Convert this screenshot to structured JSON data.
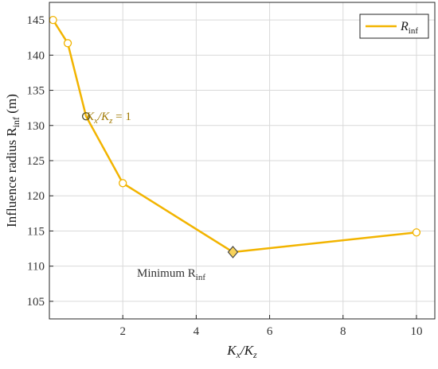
{
  "chart_data": {
    "type": "line",
    "title": "",
    "xlabel": {
      "main": "K",
      "sub1": "x",
      "sep": "/K",
      "sub2": "z"
    },
    "ylabel": {
      "main": "Influence radius R",
      "sub": "inf",
      "unit": " (m)"
    },
    "xlim": [
      0,
      10.5
    ],
    "ylim": [
      102.5,
      147.5
    ],
    "x_ticks": [
      2,
      4,
      6,
      8,
      10
    ],
    "y_ticks": [
      105,
      110,
      115,
      120,
      125,
      130,
      135,
      140,
      145
    ],
    "grid": true,
    "legend": {
      "position": "top-right",
      "label_main": "R",
      "label_sub": "inf"
    },
    "series": [
      {
        "name": "Rinf",
        "color": "#f2b400",
        "x": [
          0.1,
          0.5,
          1,
          2,
          5,
          10
        ],
        "y": [
          145.0,
          141.7,
          131.3,
          121.8,
          112.0,
          114.8
        ]
      }
    ],
    "annotations": [
      {
        "main": "K",
        "sub1": "x",
        "sep": "/K",
        "sub2": "z",
        "tail": " = 1",
        "x": 1,
        "y": 131.3,
        "color": "#a07800"
      },
      {
        "main": "Minimum R",
        "sub": "inf",
        "x": 5,
        "y": 112.0,
        "color": "#333333"
      }
    ]
  }
}
